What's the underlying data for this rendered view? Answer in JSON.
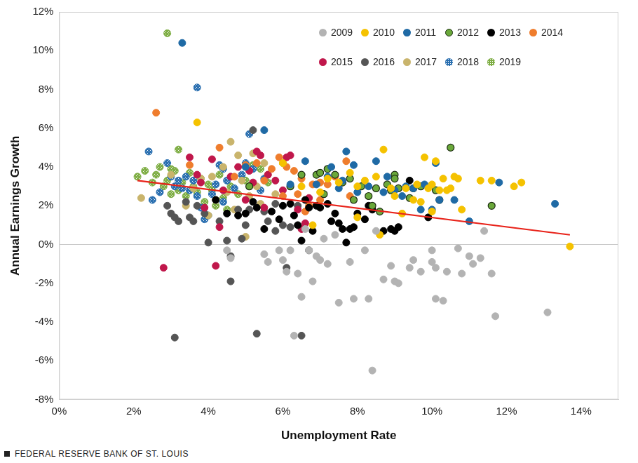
{
  "chart_data": {
    "type": "scatter",
    "x_label": "Unemployment Rate",
    "y_label": "Annual Earnings Growth",
    "source": "FEDERAL RESERVE BANK OF ST. LOUIS",
    "xlim": [
      0,
      15
    ],
    "xticks": [
      {
        "value": 0,
        "label": "0%"
      },
      {
        "value": 2,
        "label": "2%"
      },
      {
        "value": 4,
        "label": "4%"
      },
      {
        "value": 6,
        "label": "6%"
      },
      {
        "value": 8,
        "label": "8%"
      },
      {
        "value": 10,
        "label": "10%"
      },
      {
        "value": 12,
        "label": "12%"
      },
      {
        "value": 14,
        "label": "14%"
      }
    ],
    "ylim": [
      -8,
      12
    ],
    "yticks": [
      {
        "value": -8,
        "label": "-8%"
      },
      {
        "value": -6,
        "label": "-6%"
      },
      {
        "value": -4,
        "label": "-4%"
      },
      {
        "value": -2,
        "label": "-2%"
      },
      {
        "value": 0,
        "label": "0%"
      },
      {
        "value": 2,
        "label": "2%"
      },
      {
        "value": 4,
        "label": "4%"
      },
      {
        "value": 6,
        "label": "6%"
      },
      {
        "value": 8,
        "label": "8%"
      },
      {
        "value": 10,
        "label": "10%"
      },
      {
        "value": 12,
        "label": "12%"
      }
    ],
    "grid": false,
    "legend": "top-right",
    "series": [
      {
        "name": "2009",
        "color": "#b3b3b3",
        "marker": "circle",
        "x": [
          4.5,
          4.6,
          5.5,
          5.9,
          6.0,
          6.2,
          6.4,
          6.5,
          6.3,
          6.7,
          6.8,
          6.9,
          7.0,
          7.2,
          7.4,
          7.5,
          7.8,
          7.9,
          8.2,
          8.3,
          8.4,
          8.5,
          8.7,
          8.9,
          9.0,
          9.1,
          9.4,
          9.5,
          9.7,
          10.0,
          10.1,
          10.1,
          10.3,
          10.4,
          10.7,
          10.8,
          11.0,
          11.1,
          11.3,
          11.4,
          11.6,
          11.7,
          13.1,
          6.6,
          7.1,
          5.6,
          10.0,
          6.1
        ],
        "values": [
          -0.3,
          -0.7,
          -0.5,
          -0.3,
          -0.8,
          -0.3,
          -1.5,
          -2.7,
          -4.7,
          -0.3,
          -1.9,
          -0.6,
          -0.8,
          -1.0,
          0.5,
          -3.0,
          -0.9,
          -2.8,
          -0.3,
          -2.8,
          -6.5,
          0.7,
          -1.8,
          -1.1,
          -1.9,
          -2.0,
          -1.2,
          -0.8,
          -1.4,
          -0.9,
          -1.2,
          -2.8,
          -2.9,
          -1.4,
          -0.2,
          -1.5,
          -0.6,
          -1.0,
          -0.7,
          0.7,
          -1.5,
          -3.7,
          -3.5,
          0.8,
          0.3,
          -0.9,
          -0.3,
          -1.4
        ]
      },
      {
        "name": "2010",
        "color": "#f5c200",
        "marker": "circle",
        "x": [
          3.7,
          6.8,
          7.2,
          7.5,
          7.8,
          8.0,
          8.2,
          8.5,
          8.7,
          8.9,
          9.0,
          9.2,
          9.3,
          9.5,
          9.6,
          9.8,
          9.9,
          10.0,
          10.1,
          10.2,
          10.3,
          10.4,
          10.5,
          10.6,
          10.7,
          10.8,
          11.3,
          11.6,
          12.2,
          12.4,
          13.7,
          8.6,
          7.0,
          6.0,
          9.7,
          10.0,
          8.0,
          6.5
        ],
        "values": [
          6.3,
          1.0,
          3.4,
          3.2,
          3.7,
          3.0,
          3.3,
          3.5,
          4.9,
          2.9,
          2.5,
          1.6,
          2.9,
          2.3,
          3.1,
          4.5,
          2.9,
          3.1,
          4.3,
          2.8,
          3.4,
          2.8,
          2.9,
          3.5,
          3.4,
          1.8,
          3.3,
          3.3,
          3.0,
          3.2,
          -0.1,
          0.5,
          2.7,
          4.2,
          2.2,
          1.7,
          1.4,
          3.0
        ]
      },
      {
        "name": "2011",
        "color": "#1f6aa5",
        "marker": "circle",
        "x": [
          3.3,
          5.5,
          6.6,
          7.3,
          7.5,
          7.7,
          7.9,
          8.0,
          8.3,
          8.5,
          8.7,
          9.0,
          9.2,
          9.5,
          9.7,
          9.8,
          10.0,
          10.1,
          10.2,
          10.6,
          11.0,
          11.8,
          13.3,
          6.9,
          7.2,
          8.8,
          9.3,
          5.0,
          6.2,
          7.6
        ],
        "values": [
          10.4,
          5.9,
          4.3,
          4.0,
          2.9,
          4.8,
          4.1,
          2.7,
          3.0,
          4.3,
          2.7,
          2.8,
          2.5,
          2.9,
          1.8,
          3.1,
          1.8,
          4.2,
          2.3,
          2.3,
          1.2,
          3.2,
          2.1,
          3.1,
          3.5,
          3.5,
          3.0,
          4.0,
          3.1,
          3.3
        ]
      },
      {
        "name": "2012",
        "color": "#6aa83a",
        "marker": "outlined_circle",
        "x": [
          5.1,
          6.5,
          6.9,
          7.0,
          7.2,
          7.4,
          7.6,
          7.8,
          7.9,
          8.1,
          8.3,
          8.5,
          8.6,
          8.8,
          8.9,
          9.0,
          9.1,
          9.0,
          9.4,
          9.5,
          9.7,
          10.1,
          10.2,
          10.5,
          11.6,
          8.4,
          7.1,
          6.2
        ],
        "values": [
          3.0,
          3.6,
          3.6,
          3.7,
          3.9,
          3.6,
          3.2,
          3.4,
          2.3,
          3.0,
          2.5,
          2.9,
          1.7,
          3.1,
          2.8,
          3.6,
          2.9,
          3.4,
          2.4,
          2.9,
          3.0,
          2.8,
          2.3,
          5.0,
          2.0,
          2.0,
          2.6,
          3.0
        ]
      },
      {
        "name": "2013",
        "color": "#000000",
        "marker": "circle",
        "x": [
          4.2,
          4.5,
          4.8,
          5.0,
          5.2,
          5.3,
          5.5,
          5.7,
          6.0,
          6.2,
          6.3,
          6.5,
          6.6,
          6.7,
          6.8,
          6.9,
          7.0,
          7.2,
          7.3,
          7.4,
          7.5,
          7.6,
          7.7,
          7.8,
          7.9,
          8.0,
          8.2,
          8.3,
          8.4,
          8.7,
          8.9,
          9.0,
          9.1,
          9.4,
          9.9,
          6.4,
          5.9
        ],
        "values": [
          2.3,
          1.6,
          1.5,
          1.6,
          2.2,
          1.9,
          0.8,
          1.7,
          2.0,
          2.1,
          1.5,
          0.2,
          2.3,
          1.9,
          0.7,
          2.0,
          1.9,
          2.1,
          1.2,
          1.6,
          1.1,
          0.8,
          0.1,
          0.8,
          0.9,
          1.6,
          1.3,
          2.0,
          1.8,
          0.7,
          0.8,
          0.7,
          0.9,
          3.3,
          1.4,
          1.0,
          1.3
        ]
      },
      {
        "name": "2014",
        "color": "#ef7d2d",
        "marker": "circle",
        "x": [
          2.6,
          3.5,
          4.3,
          5.0,
          5.3,
          5.7,
          5.9,
          6.1,
          6.3,
          6.4,
          6.5,
          6.6,
          6.8,
          7.0,
          7.2,
          7.4,
          7.7,
          7.8,
          6.0,
          5.5,
          4.7,
          6.7,
          7.0
        ],
        "values": [
          6.8,
          4.1,
          5.0,
          4.1,
          4.2,
          3.9,
          4.5,
          4.0,
          3.8,
          2.6,
          3.4,
          1.7,
          3.1,
          3.2,
          3.1,
          3.5,
          4.3,
          2.5,
          2.5,
          3.3,
          3.5,
          2.0,
          2.3
        ]
      },
      {
        "name": "2015",
        "color": "#c0174b",
        "marker": "circle",
        "x": [
          2.8,
          4.2,
          3.5,
          3.7,
          3.9,
          4.1,
          4.3,
          4.6,
          4.8,
          5.0,
          5.1,
          5.3,
          5.4,
          5.5,
          5.6,
          5.8,
          6.0,
          6.1,
          6.2,
          6.4,
          6.5,
          6.6,
          6.7,
          5.2,
          4.4,
          3.8
        ],
        "values": [
          -1.2,
          -1.1,
          4.5,
          3.6,
          1.9,
          4.4,
          0.9,
          3.5,
          4.0,
          2.3,
          3.8,
          4.8,
          4.6,
          1.9,
          3.6,
          3.3,
          2.8,
          4.5,
          4.6,
          1.8,
          0.8,
          1.1,
          2.4,
          3.2,
          2.8,
          3.2
        ]
      },
      {
        "name": "2016",
        "color": "#555555",
        "marker": "circle",
        "x": [
          2.9,
          3.0,
          3.1,
          3.1,
          3.2,
          3.4,
          3.5,
          3.6,
          3.7,
          3.9,
          4.0,
          4.3,
          4.5,
          4.6,
          4.6,
          4.8,
          4.9,
          5.0,
          5.1,
          5.3,
          5.5,
          5.6,
          5.8,
          6.0,
          6.1,
          6.2,
          6.4,
          6.5,
          6.7,
          5.2,
          5.8
        ],
        "values": [
          2.0,
          1.6,
          1.4,
          -4.8,
          1.2,
          2.2,
          1.4,
          1.2,
          2.0,
          1.6,
          0.1,
          1.2,
          0.2,
          -0.6,
          -1.9,
          1.8,
          0.3,
          1.0,
          1.8,
          -4.6,
          1.7,
          1.2,
          2.1,
          1.0,
          -1.2,
          0.9,
          2.0,
          -4.7,
          -0.3,
          5.9,
          0.7
        ]
      },
      {
        "name": "2017",
        "color": "#c9b46c",
        "marker": "circle",
        "x": [
          2.2,
          3.0,
          3.4,
          3.8,
          4.1,
          4.4,
          4.5,
          4.6,
          4.8,
          5.0,
          5.1,
          5.2,
          5.3,
          5.5,
          5.6,
          5.8,
          4.0,
          4.2,
          4.7,
          3.6,
          4.9,
          5.4
        ],
        "values": [
          2.4,
          3.6,
          2.0,
          3.4,
          3.5,
          4.0,
          2.7,
          5.3,
          4.6,
          0.4,
          2.5,
          4.7,
          3.0,
          4.2,
          3.6,
          2.6,
          1.5,
          2.3,
          1.8,
          2.9,
          3.3,
          2.1
        ]
      },
      {
        "name": "2018",
        "color": "#2a6fb0",
        "marker": "patterned_circle",
        "x": [
          2.4,
          2.5,
          2.7,
          2.9,
          3.0,
          3.1,
          3.2,
          3.3,
          3.4,
          3.5,
          3.6,
          3.7,
          3.7,
          3.8,
          3.9,
          4.0,
          4.1,
          4.2,
          4.3,
          4.4,
          4.5,
          4.7,
          4.9,
          5.0,
          5.1,
          5.2,
          5.4,
          5.5,
          4.4
        ],
        "values": [
          4.8,
          2.3,
          2.7,
          4.2,
          3.5,
          3.0,
          3.3,
          2.9,
          3.5,
          2.8,
          3.3,
          8.1,
          2.5,
          1.9,
          1.3,
          1.5,
          2.6,
          3.1,
          4.1,
          3.9,
          3.3,
          2.9,
          3.6,
          4.2,
          5.7,
          3.9,
          2.8,
          3.4,
          2.2
        ]
      },
      {
        "name": "2019",
        "color": "#7fae45",
        "marker": "patterned_circle",
        "x": [
          2.1,
          2.3,
          2.5,
          2.6,
          2.7,
          2.8,
          2.9,
          2.9,
          3.0,
          3.1,
          3.2,
          3.2,
          3.3,
          3.4,
          3.5,
          3.6,
          3.7,
          3.8,
          3.9,
          4.0,
          4.1,
          4.2,
          4.3,
          4.5,
          4.6,
          4.8,
          5.0,
          5.2,
          5.4,
          5.6,
          6.0,
          4.4,
          3.0
        ],
        "values": [
          3.5,
          3.8,
          3.2,
          3.6,
          4.0,
          3.0,
          10.9,
          3.3,
          2.6,
          3.8,
          4.9,
          2.8,
          3.2,
          2.5,
          3.7,
          3.0,
          2.7,
          3.4,
          2.2,
          3.1,
          2.8,
          2.0,
          3.6,
          1.8,
          3.0,
          2.6,
          3.3,
          4.1,
          3.9,
          3.2,
          4.2,
          2.4,
          3.9
        ]
      }
    ],
    "trend_line": {
      "color": "#e8231a",
      "line_style": "solid",
      "x": [
        2.1,
        13.7
      ],
      "values": [
        3.3,
        0.5
      ]
    }
  }
}
